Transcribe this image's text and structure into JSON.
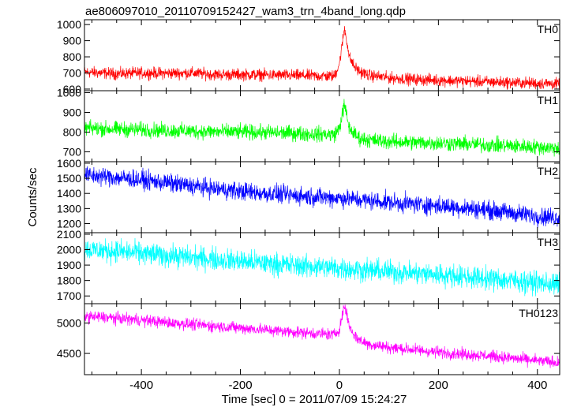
{
  "chart_data": {
    "type": "line",
    "title": "ae806097010_20110709152427_wam3_trn_4band_long.qdp",
    "xlabel": "Time [sec] 0 = 2011/07/09 15:24:27",
    "ylabel": "Counts/sec",
    "xlim": [
      -515,
      445
    ],
    "xticks": [
      -400,
      -200,
      0,
      200,
      400
    ],
    "panels": [
      {
        "name": "TH0",
        "color": "#ff0000",
        "ylim": [
          590,
          1030
        ],
        "yticks": [
          600,
          700,
          800,
          900,
          1000
        ],
        "series": {
          "x": [
            -510,
            -450,
            -400,
            -350,
            -300,
            -250,
            -200,
            -150,
            -100,
            -50,
            -10,
            0,
            5,
            10,
            15,
            20,
            30,
            40,
            60,
            100,
            150,
            200,
            250,
            300,
            350,
            400,
            440
          ],
          "y": [
            705,
            695,
            700,
            698,
            700,
            690,
            690,
            688,
            685,
            682,
            680,
            760,
            860,
            980,
            900,
            800,
            740,
            710,
            685,
            670,
            660,
            655,
            650,
            645,
            640,
            636,
            632
          ],
          "noise_amplitude": 30
        }
      },
      {
        "name": "TH1",
        "color": "#00ff00",
        "ylim": [
          650,
          1010
        ],
        "yticks": [
          700,
          800,
          900,
          1000
        ],
        "series": {
          "x": [
            -510,
            -450,
            -400,
            -350,
            -300,
            -250,
            -200,
            -150,
            -100,
            -50,
            -10,
            0,
            5,
            10,
            15,
            20,
            30,
            40,
            60,
            100,
            150,
            200,
            250,
            300,
            350,
            400,
            440
          ],
          "y": [
            820,
            815,
            812,
            808,
            805,
            802,
            800,
            798,
            795,
            790,
            788,
            820,
            880,
            940,
            880,
            820,
            790,
            770,
            760,
            752,
            748,
            745,
            740,
            735,
            730,
            725,
            718
          ],
          "noise_amplitude": 32
        }
      },
      {
        "name": "TH2",
        "color": "#0000ff",
        "ylim": [
          1140,
          1610
        ],
        "yticks": [
          1200,
          1300,
          1400,
          1500,
          1600
        ],
        "series": {
          "x": [
            -510,
            -450,
            -400,
            -350,
            -300,
            -250,
            -200,
            -150,
            -100,
            -50,
            0,
            50,
            100,
            150,
            200,
            250,
            300,
            350,
            400,
            440
          ],
          "y": [
            1520,
            1505,
            1490,
            1470,
            1450,
            1430,
            1415,
            1400,
            1388,
            1378,
            1370,
            1355,
            1342,
            1330,
            1318,
            1305,
            1290,
            1270,
            1250,
            1240
          ],
          "noise_amplitude": 50
        }
      },
      {
        "name": "TH3",
        "color": "#00ffff",
        "ylim": [
          1650,
          2110
        ],
        "yticks": [
          1700,
          1800,
          1900,
          2000,
          2100
        ],
        "series": {
          "x": [
            -510,
            -450,
            -400,
            -350,
            -300,
            -250,
            -200,
            -150,
            -100,
            -50,
            0,
            50,
            100,
            150,
            200,
            250,
            300,
            350,
            400,
            440
          ],
          "y": [
            2000,
            1990,
            1975,
            1962,
            1950,
            1938,
            1925,
            1912,
            1900,
            1890,
            1880,
            1868,
            1858,
            1848,
            1838,
            1826,
            1812,
            1800,
            1785,
            1775
          ],
          "noise_amplitude": 60
        }
      },
      {
        "name": "TH0123",
        "color": "#ff00ff",
        "ylim": [
          4150,
          5320
        ],
        "yticks": [
          4500,
          5000
        ],
        "series": {
          "x": [
            -510,
            -450,
            -400,
            -350,
            -300,
            -250,
            -200,
            -150,
            -100,
            -50,
            -10,
            0,
            5,
            10,
            15,
            20,
            30,
            40,
            60,
            100,
            150,
            200,
            250,
            300,
            350,
            400,
            440
          ],
          "y": [
            5110,
            5080,
            5050,
            5010,
            4980,
            4950,
            4920,
            4890,
            4860,
            4830,
            4810,
            4900,
            5100,
            5280,
            5150,
            4950,
            4800,
            4720,
            4650,
            4600,
            4560,
            4520,
            4490,
            4460,
            4420,
            4380,
            4350
          ],
          "noise_amplitude": 80
        }
      }
    ]
  }
}
